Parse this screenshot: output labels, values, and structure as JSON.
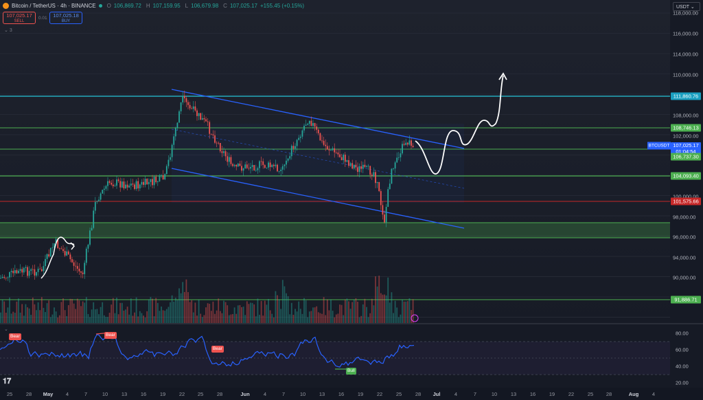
{
  "header": {
    "symbol": "Bitcoin / TetherUS · 4h · BINANCE",
    "o_key": "O",
    "o_val": "106,869.72",
    "h_key": "H",
    "h_val": "107,159.95",
    "l_key": "L",
    "l_val": "106,679.98",
    "c_key": "C",
    "c_val": "107,025.17",
    "change": "+155.45 (+0.15%)"
  },
  "trade": {
    "sell_price": "107,025.17",
    "sell_label": "SELL",
    "spread": "0.01",
    "buy_price": "107,025.18",
    "buy_label": "BUY"
  },
  "indicator_count": "3",
  "currency": "USDT",
  "price_ticks": [
    "118,000.00",
    "116,000.00",
    "114,000.00",
    "110,000.00",
    "108,000.00",
    "102,000.00",
    "100,000.00",
    "98,000.00",
    "96,000.00",
    "94,000.00",
    "90,000.00"
  ],
  "level_labels": {
    "l1": "111,860.76",
    "l2": "108,746.13",
    "l3": "106,737.30",
    "l4": "104,093.40",
    "l5": "101,575.66",
    "l6": "91,886.71"
  },
  "current": {
    "symbol": "BTCUSDT",
    "price": "107,025.17",
    "countdown": "01:04:54"
  },
  "rsi": {
    "ticks": [
      "80.00",
      "60.00",
      "40.00",
      "20.00"
    ],
    "tags": [
      "Bear",
      "Bear",
      "Bear",
      "Bull"
    ]
  },
  "time_axis": [
    "25",
    "28",
    "May",
    "4",
    "7",
    "10",
    "13",
    "16",
    "19",
    "22",
    "25",
    "28",
    "Jun",
    "4",
    "7",
    "10",
    "13",
    "16",
    "19",
    "22",
    "25",
    "28",
    "Jul",
    "4",
    "7",
    "10",
    "13",
    "16",
    "19",
    "22",
    "25",
    "28",
    "Aug",
    "4"
  ],
  "colors": {
    "up": "#26a69a",
    "down": "#ef5350",
    "channel": "#2962ff",
    "level_green": "#4caf50",
    "level_cyan": "#26c6da",
    "level_red": "#c62828"
  }
}
